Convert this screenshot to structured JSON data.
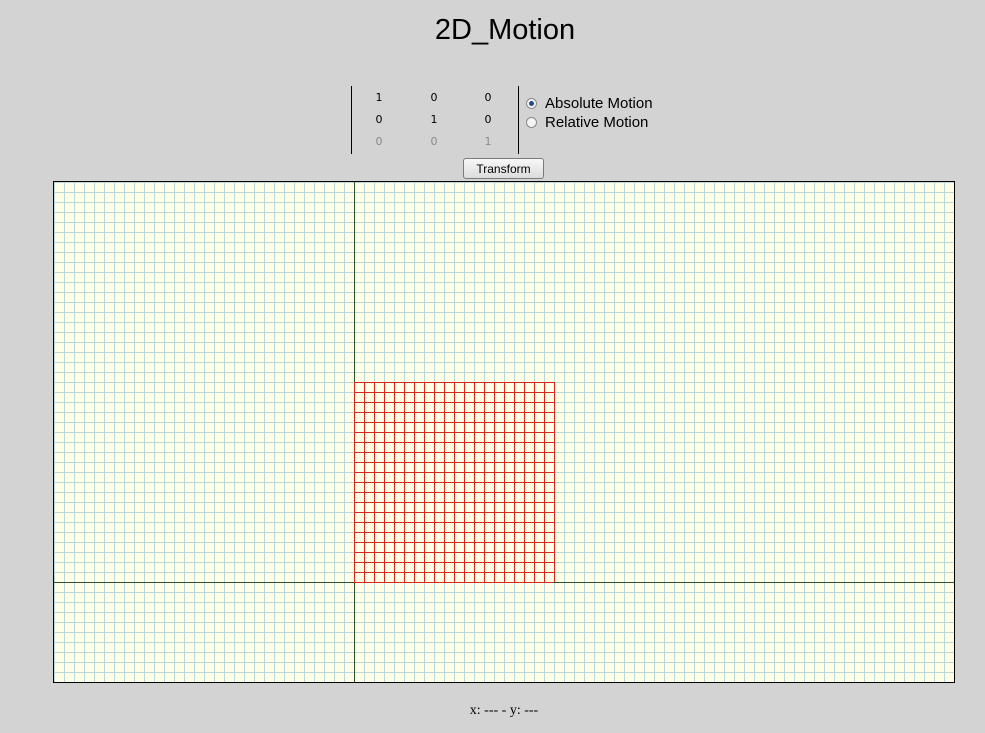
{
  "title": "2D_Motion",
  "matrix": {
    "rows": [
      [
        "1",
        "0",
        "0"
      ],
      [
        "0",
        "1",
        "0"
      ],
      [
        "0",
        "0",
        "1"
      ]
    ]
  },
  "motion_options": [
    {
      "label": "Absolute Motion",
      "selected": true
    },
    {
      "label": "Relative Motion",
      "selected": false
    }
  ],
  "transform_button": "Transform",
  "coordinates_readout": "x: --- - y: ---",
  "colors": {
    "page_background": "#d3d3d3",
    "canvas_background": "#fffee6",
    "grid": "#b8d8dc",
    "axes": "#2f4f2f",
    "shape": "#d9251a",
    "radio_selected": "#1f4f86"
  }
}
